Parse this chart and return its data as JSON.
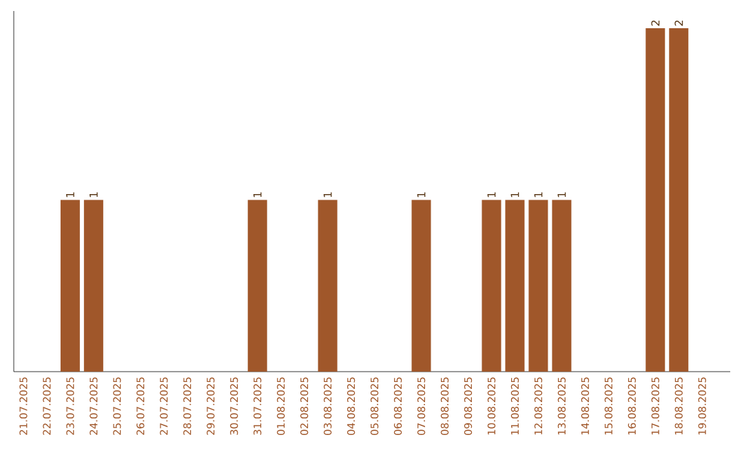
{
  "chart_data": {
    "type": "bar",
    "color": "#a0572a",
    "categories": [
      "21.07.2025",
      "22.07.2025",
      "23.07.2025",
      "24.07.2025",
      "25.07.2025",
      "26.07.2025",
      "27.07.2025",
      "28.07.2025",
      "29.07.2025",
      "30.07.2025",
      "31.07.2025",
      "01.08.2025",
      "02.08.2025",
      "03.08.2025",
      "04.08.2025",
      "05.08.2025",
      "06.08.2025",
      "07.08.2025",
      "08.08.2025",
      "09.08.2025",
      "10.08.2025",
      "11.08.2025",
      "12.08.2025",
      "13.08.2025",
      "14.08.2025",
      "15.08.2025",
      "16.08.2025",
      "17.08.2025",
      "18.08.2025",
      "19.08.2025"
    ],
    "values": [
      0,
      0,
      1,
      1,
      0,
      0,
      0,
      0,
      0,
      0,
      1,
      0,
      0,
      1,
      0,
      0,
      0,
      1,
      0,
      0,
      1,
      1,
      1,
      1,
      0,
      0,
      0,
      2,
      2,
      0
    ],
    "value_labels": [
      null,
      null,
      "1",
      "1",
      null,
      null,
      null,
      null,
      null,
      null,
      "1",
      null,
      null,
      "1",
      null,
      null,
      null,
      "1",
      null,
      null,
      "1",
      "1",
      "1",
      "1",
      null,
      null,
      null,
      "2",
      "2",
      null
    ]
  }
}
